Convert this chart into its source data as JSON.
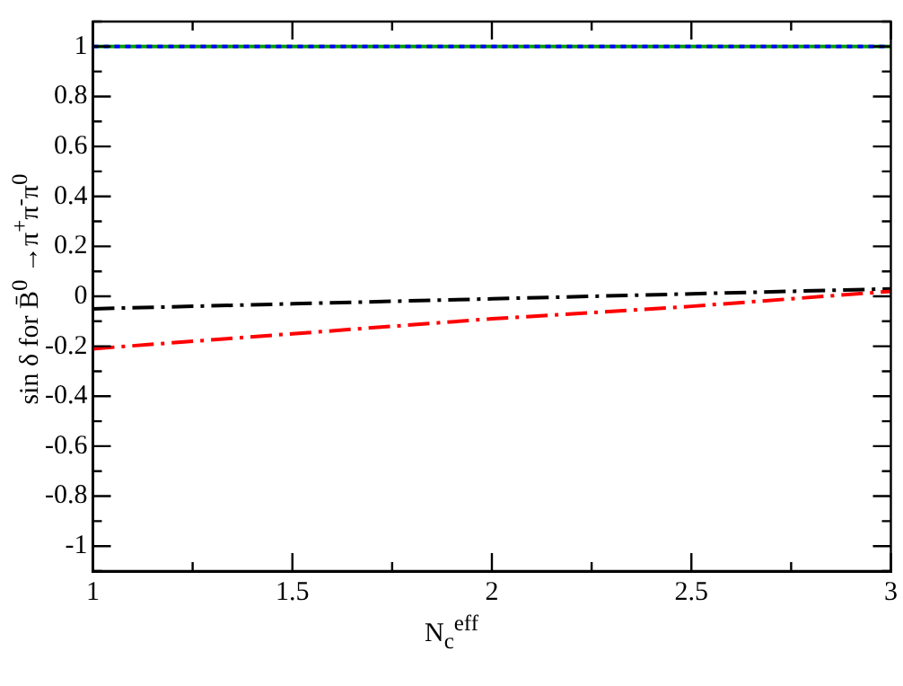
{
  "chart_data": {
    "type": "line",
    "xlabel": "N$_{c}$$^{eff}$",
    "ylabel": "sin δ  for B̄$^{0}$ →π$^{+}$π$^{-}$π$^{0}$",
    "x": [
      1,
      1.5,
      2,
      2.5,
      3
    ],
    "series": [
      {
        "color": "#00a000",
        "line_style": "solid",
        "values": [
          1,
          1,
          1,
          1,
          1
        ]
      },
      {
        "color": "#0000ff",
        "line_style": "dotted",
        "values": [
          1,
          1,
          1,
          1,
          1
        ]
      },
      {
        "color": "#000000",
        "line_style": "dashed",
        "values": [
          -0.05,
          -0.03,
          -0.01,
          0.01,
          0.03
        ]
      },
      {
        "color": "#ff0000",
        "line_style": "dashed",
        "values": [
          -0.21,
          -0.15,
          -0.09,
          -0.04,
          0.02
        ]
      }
    ],
    "xlim": [
      1,
      3
    ],
    "ylim": [
      -1.1,
      1.1
    ],
    "xticks": [
      1,
      {
        "value": 1.25,
        "label": null
      },
      1.5,
      {
        "value": 1.75,
        "label": null
      },
      2,
      {
        "value": 2.25,
        "label": null
      },
      2.5,
      {
        "value": 2.75,
        "label": null
      },
      3
    ],
    "yticks": [
      {
        "value": -1.1,
        "label": null
      },
      -1,
      {
        "value": -0.9,
        "label": null
      },
      -0.8,
      {
        "value": -0.7,
        "label": null
      },
      -0.6,
      {
        "value": -0.5,
        "label": null
      },
      -0.4,
      {
        "value": -0.3,
        "label": null
      },
      -0.2,
      {
        "value": -0.1,
        "label": null
      },
      0,
      {
        "value": 0.1,
        "label": null
      },
      0.2,
      {
        "value": 0.3,
        "label": null
      },
      0.4,
      {
        "value": 0.5,
        "label": null
      },
      0.6,
      {
        "value": 0.7,
        "label": null
      },
      0.8,
      {
        "value": 0.9,
        "label": null
      },
      1,
      {
        "value": 1.1,
        "label": null
      }
    ],
    "grid": false,
    "legend": false,
    "marker": "none"
  }
}
